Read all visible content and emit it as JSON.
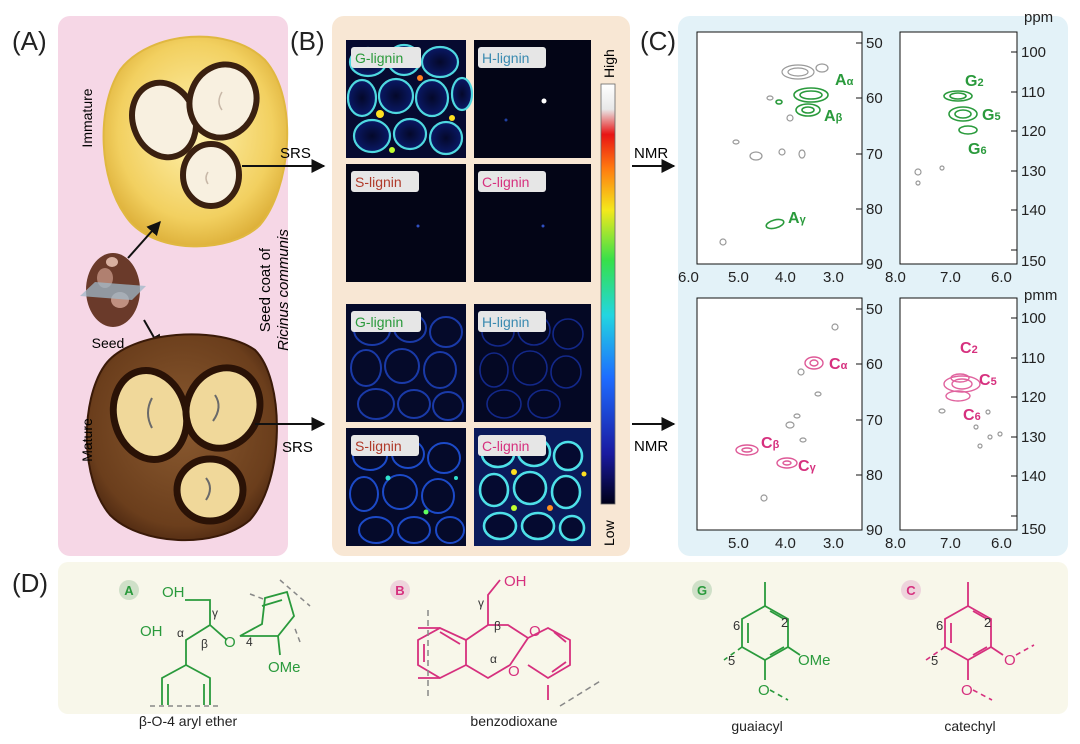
{
  "panels": {
    "a": {
      "letter": "(A)",
      "immature": "Immature",
      "mature": "Mature",
      "seed": "Seed",
      "side_label_1": "Seed coat of",
      "side_label_2": "Ricinus communis",
      "srs": "SRS"
    },
    "b": {
      "letter": "(B)",
      "top": [
        "G-lignin",
        "H-lignin",
        "S-lignin",
        "C-lignin"
      ],
      "bottom": [
        "G-lignin",
        "H-lignin",
        "S-lignin",
        "C-lignin"
      ],
      "scale_high": "High",
      "scale_low": "Low"
    },
    "c": {
      "letter": "(C)",
      "nmr": "NMR",
      "top_unit": "ppm",
      "bottom_unit": "pmm",
      "left_ticks": [
        "50",
        "60",
        "70",
        "80",
        "90"
      ],
      "right_ticks": [
        "100",
        "110",
        "120",
        "130",
        "140",
        "150"
      ],
      "top_left_x": [
        "6.0",
        "5.0",
        "4.0",
        "3.0"
      ],
      "top_right_x": [
        "8.0",
        "7.0",
        "6.0"
      ],
      "bottom_left_x": [
        "5.0",
        "4.0",
        "3.0"
      ],
      "bottom_right_x": [
        "8.0",
        "7.0",
        "6.0"
      ],
      "peaks_top_left": [
        {
          "letter": "A",
          "sub": "α"
        },
        {
          "letter": "A",
          "sub": "β"
        },
        {
          "letter": "A",
          "sub": "γ"
        }
      ],
      "peaks_top_right": [
        {
          "letter": "G",
          "sub": "2"
        },
        {
          "letter": "G",
          "sub": "5"
        },
        {
          "letter": "G",
          "sub": "6"
        }
      ],
      "peaks_bottom_left": [
        {
          "letter": "C",
          "sub": "α"
        },
        {
          "letter": "C",
          "sub": "β"
        },
        {
          "letter": "C",
          "sub": "γ"
        }
      ],
      "peaks_bottom_right": [
        {
          "letter": "C",
          "sub": "2"
        },
        {
          "letter": "C",
          "sub": "5"
        },
        {
          "letter": "C",
          "sub": "6"
        }
      ]
    },
    "d": {
      "letter": "(D)",
      "structures": [
        {
          "badge": "A",
          "name": "β-O-4 aryl ether",
          "oh1": "OH",
          "oh2": "OH",
          "alpha": "α",
          "beta": "β",
          "gamma": "γ",
          "o": "O",
          "four": "4",
          "ome": "OMe"
        },
        {
          "badge": "B",
          "name": "benzodioxane",
          "oh": "OH",
          "alpha": "α",
          "beta": "β",
          "gamma": "γ",
          "o1": "O",
          "o2": "O"
        },
        {
          "badge": "G",
          "name": "guaiacyl",
          "n2": "2",
          "n5": "5",
          "n6": "6",
          "ome": "OMe",
          "o": "O"
        },
        {
          "badge": "C",
          "name": "catechyl",
          "n2": "2",
          "n5": "5",
          "n6": "6",
          "o1": "O",
          "o2": "O"
        }
      ]
    }
  },
  "colors": {
    "green": "#2a9a3c",
    "magenta": "#d6307e",
    "panel_a_bg": "#f6d7e6",
    "panel_b_bg": "#f8e7d4",
    "panel_c_bg": "#e3f2f8",
    "panel_d_bg": "#f8f7ea",
    "nmr_gray": "#888888"
  }
}
